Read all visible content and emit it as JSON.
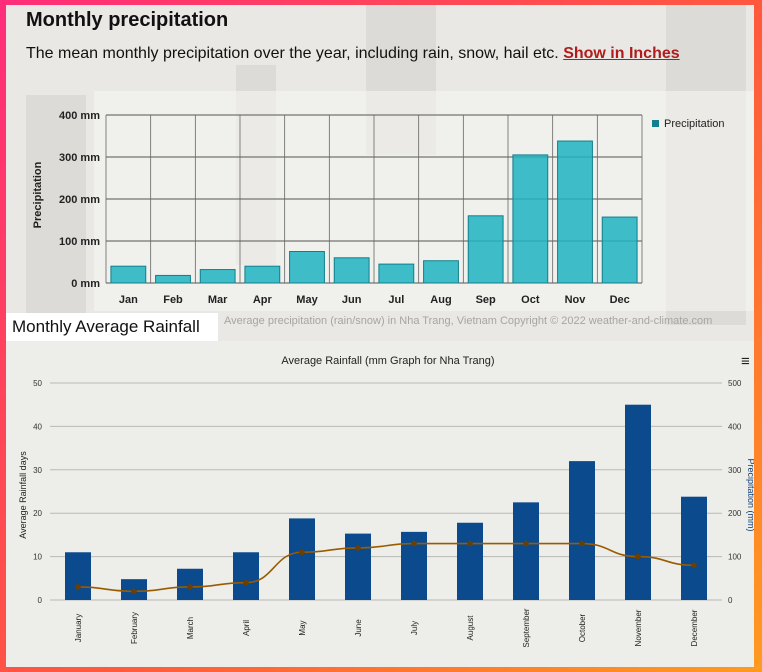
{
  "section1": {
    "title": "Monthly precipitation",
    "subtitle": "The mean monthly precipitation over the year, including rain, snow, hail etc.",
    "link": "Show in Inches",
    "copyright": "Average precipitation (rain/snow) in Nha Trang, Vietnam   Copyright © 2022  weather-and-climate.com"
  },
  "section2": {
    "title": "Monthly Average Rainfall",
    "menu_icon": "hamburger-menu-icon"
  },
  "colors": {
    "teal_bar": "#1fb3c1",
    "navy_bar": "#0b4a8c",
    "line": "#9a5b00",
    "link": "#b01c1c"
  },
  "chart_data": [
    {
      "type": "bar",
      "title": "",
      "xlabel": "",
      "ylabel": "Precipitation",
      "categories": [
        "Jan",
        "Feb",
        "Mar",
        "Apr",
        "May",
        "Jun",
        "Jul",
        "Aug",
        "Sep",
        "Oct",
        "Nov",
        "Dec"
      ],
      "series": [
        {
          "name": "Precipitation",
          "values": [
            40,
            18,
            32,
            40,
            75,
            60,
            45,
            53,
            160,
            305,
            338,
            157
          ]
        }
      ],
      "ylim": [
        0,
        400
      ],
      "yticks": [
        "0 mm",
        "100 mm",
        "200 mm",
        "300 mm",
        "400 mm"
      ],
      "grid": true,
      "legend": "top-right"
    },
    {
      "type": "bar+line",
      "title": "Average Rainfall (mm Graph for Nha Trang)",
      "ylabel_left": "Average Rainfall days",
      "ylabel_right": "Precipitation (mm)",
      "categories": [
        "January",
        "February",
        "March",
        "April",
        "May",
        "June",
        "July",
        "August",
        "September",
        "October",
        "November",
        "December"
      ],
      "bar_axis": "right",
      "bar_values_mm": [
        110,
        48,
        72,
        110,
        188,
        153,
        157,
        178,
        225,
        320,
        450,
        238
      ],
      "line_axis": "left",
      "line_values_days": [
        3,
        2,
        3,
        4,
        11,
        12,
        13,
        13,
        13,
        13,
        10,
        8
      ],
      "ylim_left": [
        0,
        50
      ],
      "ylim_right": [
        0,
        500
      ],
      "yticks_left": [
        "0",
        "10",
        "20",
        "30",
        "40",
        "50"
      ],
      "yticks_right": [
        "0",
        "100",
        "200",
        "300",
        "400",
        "500"
      ],
      "grid": true
    }
  ]
}
